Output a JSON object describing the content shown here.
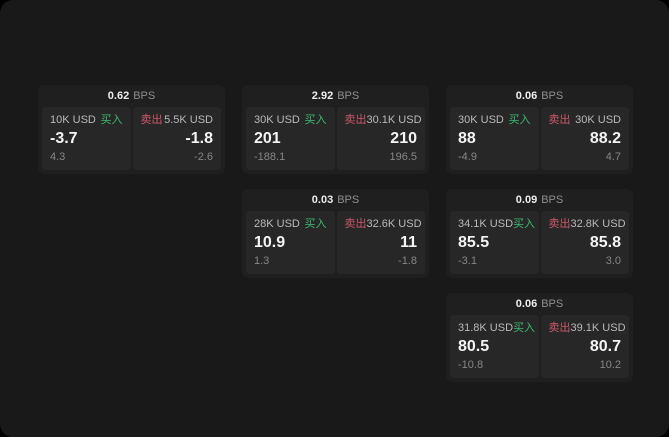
{
  "labels": {
    "bps": "BPS",
    "buy": "买入",
    "sell": "卖出"
  },
  "colors": {
    "buy": "#3cba72",
    "sell": "#cf566b"
  },
  "cards": [
    {
      "bps": "0.62",
      "row": 1,
      "col": 1,
      "buy": {
        "amount": "10K USD",
        "value": "-3.7",
        "sub": "4.3"
      },
      "sell": {
        "amount": "5.5K USD",
        "value": "-1.8",
        "sub": "-2.6"
      }
    },
    {
      "bps": "2.92",
      "row": 1,
      "col": 2,
      "buy": {
        "amount": "30K USD",
        "value": "201",
        "sub": "-188.1"
      },
      "sell": {
        "amount": "30.1K USD",
        "value": "210",
        "sub": "196.5"
      }
    },
    {
      "bps": "0.06",
      "row": 1,
      "col": 3,
      "buy": {
        "amount": "30K USD",
        "value": "88",
        "sub": "-4.9"
      },
      "sell": {
        "amount": "30K USD",
        "value": "88.2",
        "sub": "4.7"
      }
    },
    {
      "bps": "0.03",
      "row": 2,
      "col": 2,
      "buy": {
        "amount": "28K USD",
        "value": "10.9",
        "sub": "1.3"
      },
      "sell": {
        "amount": "32.6K USD",
        "value": "11",
        "sub": "-1.8"
      }
    },
    {
      "bps": "0.09",
      "row": 2,
      "col": 3,
      "buy": {
        "amount": "34.1K USD",
        "value": "85.5",
        "sub": "-3.1"
      },
      "sell": {
        "amount": "32.8K USD",
        "value": "85.8",
        "sub": "3.0"
      }
    },
    {
      "bps": "0.06",
      "row": 3,
      "col": 3,
      "buy": {
        "amount": "31.8K USD",
        "value": "80.5",
        "sub": "-10.8"
      },
      "sell": {
        "amount": "39.1K USD",
        "value": "80.7",
        "sub": "10.2"
      }
    }
  ]
}
